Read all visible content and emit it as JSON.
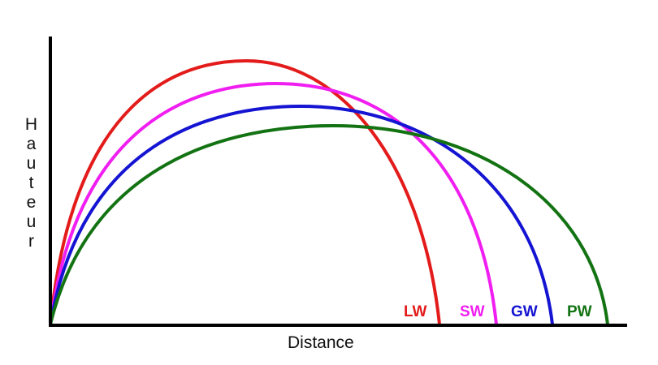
{
  "axes": {
    "x_label": "Distance",
    "y_label": "Hauteur"
  },
  "trajectories": [
    {
      "label": "LW",
      "color": "#e31b1b"
    },
    {
      "label": "SW",
      "color": "#f01ef0"
    },
    {
      "label": "GW",
      "color": "#1414d2"
    },
    {
      "label": "PW",
      "color": "#137313"
    }
  ]
}
